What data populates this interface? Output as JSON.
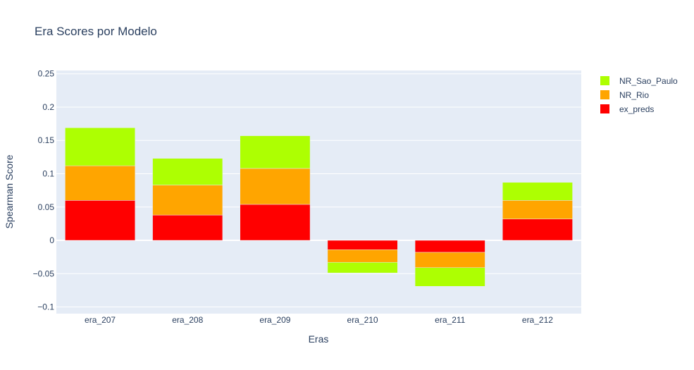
{
  "chart_data": {
    "type": "bar",
    "barmode": "relative",
    "title": "Era Scores por Modelo",
    "xlabel": "Eras",
    "ylabel": "Spearman Score",
    "categories": [
      "era_207",
      "era_208",
      "era_209",
      "era_210",
      "era_211",
      "era_212"
    ],
    "ylim": [
      -0.11,
      0.255
    ],
    "yticks": [
      -0.1,
      -0.05,
      0,
      0.05,
      0.1,
      0.15,
      0.2,
      0.25
    ],
    "ytick_labels": [
      "−0.1",
      "−0.05",
      "0",
      "0.05",
      "0.1",
      "0.15",
      "0.2",
      "0.25"
    ],
    "grid": true,
    "legend_position": "top-right",
    "plot_background": "#e5ecf6",
    "series": [
      {
        "name": "ex_preds",
        "color": "#ff0000",
        "values": [
          0.06,
          0.038,
          0.054,
          -0.014,
          -0.018,
          0.032
        ]
      },
      {
        "name": "NR_Rio",
        "color": "#ffa500",
        "values": [
          0.052,
          0.045,
          0.054,
          -0.019,
          -0.023,
          0.028
        ]
      },
      {
        "name": "NR_Sao_Paulo",
        "color": "#adff02",
        "values": [
          0.057,
          0.04,
          0.049,
          -0.016,
          -0.028,
          0.027
        ]
      }
    ]
  }
}
